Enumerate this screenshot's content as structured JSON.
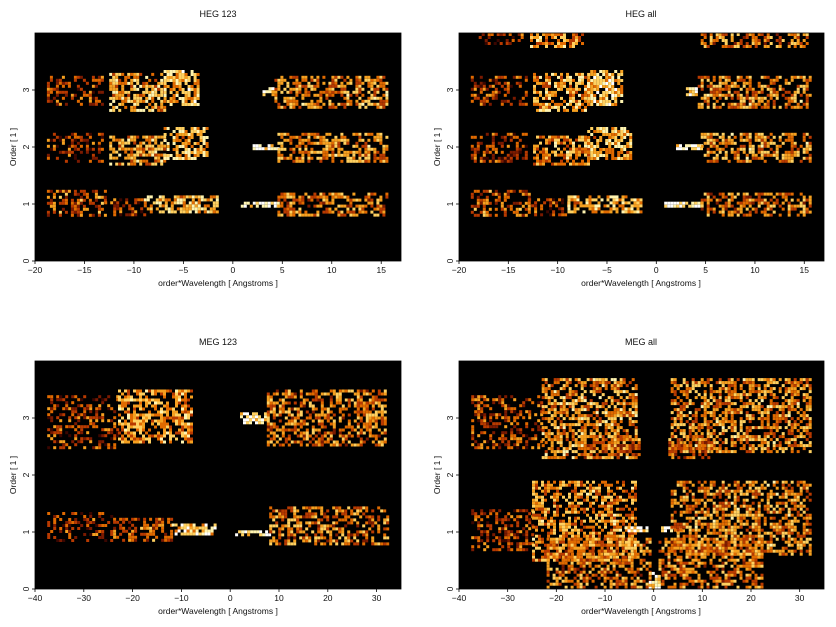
{
  "figure": {
    "background": "#ffffff",
    "plot_background": "#000000"
  },
  "colormap": [
    "#000000",
    "#3a0600",
    "#7a1a00",
    "#b83a00",
    "#e06a00",
    "#f5a020",
    "#ffd060",
    "#fff4b0",
    "#ffffff"
  ],
  "chart_data": [
    {
      "type": "heatmap",
      "title": "HEG 123",
      "xlabel": "order*Wavelength [ Angstroms ]",
      "ylabel": "Order [ 1 ]",
      "xlim": [
        -20,
        17
      ],
      "ylim": [
        0,
        4
      ],
      "xticks": [
        -20,
        -15,
        -10,
        -5,
        0,
        5,
        10,
        15
      ],
      "yticks": [
        0,
        1,
        2,
        3
      ],
      "bands": [
        {
          "order": 3,
          "segments": [
            {
              "x": [
                -18.8,
                -13.2
              ],
              "y": [
                2.75,
                3.25
              ],
              "fill": 0.3
            },
            {
              "x": [
                -12.5,
                -7.0
              ],
              "y": [
                2.65,
                3.3
              ],
              "fill": 0.65
            },
            {
              "x": [
                -7.0,
                -3.5
              ],
              "y": [
                2.75,
                3.35
              ],
              "fill": 0.75
            },
            {
              "x": [
                3.0,
                4.2
              ],
              "y": [
                2.92,
                3.05
              ],
              "fill": 1.0
            },
            {
              "x": [
                4.2,
                15.6
              ],
              "y": [
                2.7,
                3.25
              ],
              "fill": 0.55
            }
          ]
        },
        {
          "order": 2,
          "segments": [
            {
              "x": [
                -18.8,
                -13.2
              ],
              "y": [
                1.75,
                2.25
              ],
              "fill": 0.25
            },
            {
              "x": [
                -12.5,
                -7.0
              ],
              "y": [
                1.7,
                2.2
              ],
              "fill": 0.6
            },
            {
              "x": [
                -7.0,
                -2.5
              ],
              "y": [
                1.8,
                2.35
              ],
              "fill": 0.7
            },
            {
              "x": [
                2.0,
                4.5
              ],
              "y": [
                1.95,
                2.05
              ],
              "fill": 1.0
            },
            {
              "x": [
                4.5,
                15.6
              ],
              "y": [
                1.75,
                2.25
              ],
              "fill": 0.55
            }
          ]
        },
        {
          "order": 1,
          "segments": [
            {
              "x": [
                -18.8,
                -13.0
              ],
              "y": [
                0.8,
                1.25
              ],
              "fill": 0.4
            },
            {
              "x": [
                -13.0,
                -9.0
              ],
              "y": [
                0.82,
                1.1
              ],
              "fill": 0.25
            },
            {
              "x": [
                -9.0,
                -1.5
              ],
              "y": [
                0.88,
                1.15
              ],
              "fill": 0.7
            },
            {
              "x": [
                0.8,
                4.5
              ],
              "y": [
                0.94,
                1.04
              ],
              "fill": 1.0
            },
            {
              "x": [
                4.5,
                15.6
              ],
              "y": [
                0.8,
                1.2
              ],
              "fill": 0.5
            }
          ]
        }
      ]
    },
    {
      "type": "heatmap",
      "title": "HEG all",
      "xlabel": "order*Wavelength [ Angstroms ]",
      "ylabel": "Order [ 1 ]",
      "xlim": [
        -20,
        17
      ],
      "ylim": [
        0,
        4
      ],
      "xticks": [
        -20,
        -15,
        -10,
        -5,
        0,
        5,
        10,
        15
      ],
      "yticks": [
        0,
        1,
        2,
        3
      ],
      "bands": [
        {
          "order": 4,
          "segments": [
            {
              "x": [
                -18.0,
                -13.5
              ],
              "y": [
                3.8,
                4.0
              ],
              "fill": 0.2
            },
            {
              "x": [
                -12.8,
                -7.5
              ],
              "y": [
                3.75,
                4.0
              ],
              "fill": 0.6
            },
            {
              "x": [
                4.5,
                15.6
              ],
              "y": [
                3.75,
                4.0
              ],
              "fill": 0.5
            }
          ]
        },
        {
          "order": 3,
          "segments": [
            {
              "x": [
                -18.8,
                -13.2
              ],
              "y": [
                2.75,
                3.25
              ],
              "fill": 0.3
            },
            {
              "x": [
                -12.5,
                -7.0
              ],
              "y": [
                2.65,
                3.3
              ],
              "fill": 0.65
            },
            {
              "x": [
                -7.0,
                -3.5
              ],
              "y": [
                2.75,
                3.35
              ],
              "fill": 0.75
            },
            {
              "x": [
                3.0,
                4.2
              ],
              "y": [
                2.92,
                3.05
              ],
              "fill": 1.0
            },
            {
              "x": [
                4.2,
                15.6
              ],
              "y": [
                2.7,
                3.25
              ],
              "fill": 0.55
            }
          ]
        },
        {
          "order": 2,
          "segments": [
            {
              "x": [
                -18.8,
                -13.2
              ],
              "y": [
                1.75,
                2.25
              ],
              "fill": 0.25
            },
            {
              "x": [
                -12.5,
                -7.0
              ],
              "y": [
                1.7,
                2.2
              ],
              "fill": 0.6
            },
            {
              "x": [
                -7.0,
                -2.5
              ],
              "y": [
                1.8,
                2.35
              ],
              "fill": 0.7
            },
            {
              "x": [
                2.0,
                4.5
              ],
              "y": [
                1.95,
                2.05
              ],
              "fill": 1.0
            },
            {
              "x": [
                4.5,
                15.6
              ],
              "y": [
                1.75,
                2.25
              ],
              "fill": 0.55
            }
          ]
        },
        {
          "order": 1,
          "segments": [
            {
              "x": [
                -18.8,
                -13.0
              ],
              "y": [
                0.8,
                1.25
              ],
              "fill": 0.4
            },
            {
              "x": [
                -13.0,
                -9.0
              ],
              "y": [
                0.82,
                1.1
              ],
              "fill": 0.25
            },
            {
              "x": [
                -9.0,
                -1.5
              ],
              "y": [
                0.88,
                1.15
              ],
              "fill": 0.7
            },
            {
              "x": [
                0.8,
                4.5
              ],
              "y": [
                0.94,
                1.04
              ],
              "fill": 1.0
            },
            {
              "x": [
                4.5,
                15.6
              ],
              "y": [
                0.8,
                1.2
              ],
              "fill": 0.5
            }
          ]
        }
      ]
    },
    {
      "type": "heatmap",
      "title": "MEG 123",
      "xlabel": "order*Wavelength [ Angstroms ]",
      "ylabel": "Order [ 1 ]",
      "xlim": [
        -40,
        35
      ],
      "ylim": [
        0,
        4
      ],
      "xticks": [
        -40,
        -30,
        -20,
        -10,
        0,
        10,
        20,
        30
      ],
      "yticks": [
        0,
        1,
        2,
        3
      ],
      "bands": [
        {
          "order": 3,
          "segments": [
            {
              "x": [
                -37.5,
                -23.0
              ],
              "y": [
                2.5,
                3.4
              ],
              "fill": 0.3
            },
            {
              "x": [
                -23.0,
                -8.0
              ],
              "y": [
                2.6,
                3.5
              ],
              "fill": 0.6
            },
            {
              "x": [
                2.0,
                7.5
              ],
              "y": [
                2.9,
                3.1
              ],
              "fill": 0.95
            },
            {
              "x": [
                7.5,
                32.0
              ],
              "y": [
                2.5,
                3.5
              ],
              "fill": 0.5
            }
          ]
        },
        {
          "order": 1,
          "segments": [
            {
              "x": [
                -37.5,
                -24.0
              ],
              "y": [
                0.85,
                1.35
              ],
              "fill": 0.25
            },
            {
              "x": [
                -24.0,
                -12.0
              ],
              "y": [
                0.85,
                1.25
              ],
              "fill": 0.4
            },
            {
              "x": [
                -12.0,
                -3.0
              ],
              "y": [
                0.95,
                1.15
              ],
              "fill": 0.8
            },
            {
              "x": [
                1.0,
                8.0
              ],
              "y": [
                0.96,
                1.03
              ],
              "fill": 1.0
            },
            {
              "x": [
                8.0,
                32.0
              ],
              "y": [
                0.8,
                1.45
              ],
              "fill": 0.5
            }
          ]
        }
      ]
    },
    {
      "type": "heatmap",
      "title": "MEG all",
      "xlabel": "order*Wavelength [ Angstroms ]",
      "ylabel": "Order [ 1 ]",
      "xlim": [
        -40,
        35
      ],
      "ylim": [
        0,
        4
      ],
      "xticks": [
        -40,
        -30,
        -20,
        -10,
        0,
        10,
        20,
        30
      ],
      "yticks": [
        0,
        1,
        2,
        3
      ],
      "bands": [
        {
          "order": 3,
          "segments": [
            {
              "x": [
                -37.5,
                -23.0
              ],
              "y": [
                2.5,
                3.4
              ],
              "fill": 0.3
            },
            {
              "x": [
                -23.0,
                -3.5
              ],
              "y": [
                2.3,
                3.7
              ],
              "fill": 0.6
            },
            {
              "x": [
                3.5,
                32.0
              ],
              "y": [
                2.4,
                3.7
              ],
              "fill": 0.55
            }
          ]
        },
        {
          "order": 2,
          "segments": [
            {
              "x": [
                -15.0,
                -3.0
              ],
              "y": [
                2.3,
                2.7
              ],
              "fill": 0.45
            },
            {
              "x": [
                3.0,
                12.0
              ],
              "y": [
                2.3,
                2.7
              ],
              "fill": 0.45
            }
          ]
        },
        {
          "order": 1,
          "segments": [
            {
              "x": [
                -37.5,
                -25.0
              ],
              "y": [
                0.7,
                1.4
              ],
              "fill": 0.3
            },
            {
              "x": [
                -25.0,
                -3.5
              ],
              "y": [
                0.5,
                1.9
              ],
              "fill": 0.55
            },
            {
              "x": [
                -6.0,
                -1.5
              ],
              "y": [
                1.0,
                1.1
              ],
              "fill": 1.0
            },
            {
              "x": [
                1.5,
                6.0
              ],
              "y": [
                1.0,
                1.1
              ],
              "fill": 1.0
            },
            {
              "x": [
                3.5,
                32.0
              ],
              "y": [
                0.6,
                1.9
              ],
              "fill": 0.55
            }
          ]
        },
        {
          "order": 0,
          "segments": [
            {
              "x": [
                -22.0,
                -1.0
              ],
              "y": [
                0.05,
                0.9
              ],
              "fill": 0.5
            },
            {
              "x": [
                1.0,
                22.0
              ],
              "y": [
                0.05,
                0.9
              ],
              "fill": 0.5
            },
            {
              "x": [
                -1.0,
                1.0
              ],
              "y": [
                0.0,
                0.3
              ],
              "fill": 0.9
            }
          ]
        }
      ]
    }
  ]
}
